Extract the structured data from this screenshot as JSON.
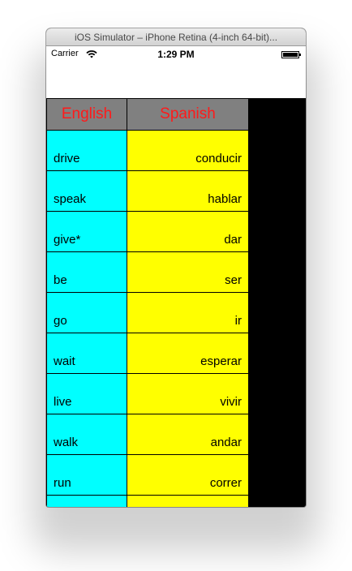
{
  "window": {
    "title": "iOS Simulator – iPhone Retina (4-inch 64-bit)..."
  },
  "status_bar": {
    "carrier": "Carrier",
    "time": "1:29 PM",
    "wifi_icon": "wifi-icon",
    "battery_icon": "battery-icon"
  },
  "table": {
    "header": {
      "english": "English",
      "spanish": "Spanish"
    },
    "rows": [
      {
        "english": "drive",
        "spanish": "conducir"
      },
      {
        "english": "speak",
        "spanish": "hablar"
      },
      {
        "english": "give*",
        "spanish": "dar"
      },
      {
        "english": "be",
        "spanish": "ser"
      },
      {
        "english": "go",
        "spanish": "ir"
      },
      {
        "english": "wait",
        "spanish": "esperar"
      },
      {
        "english": "live",
        "spanish": "vivir"
      },
      {
        "english": "walk",
        "spanish": "andar"
      },
      {
        "english": "run",
        "spanish": "correr"
      },
      {
        "english": "",
        "spanish": ""
      }
    ]
  },
  "colors": {
    "header_background": "#808080",
    "header_text": "#ff1a1a",
    "english_cell": "#00ffff",
    "spanish_cell": "#ffff00",
    "screen_background": "#000000"
  }
}
